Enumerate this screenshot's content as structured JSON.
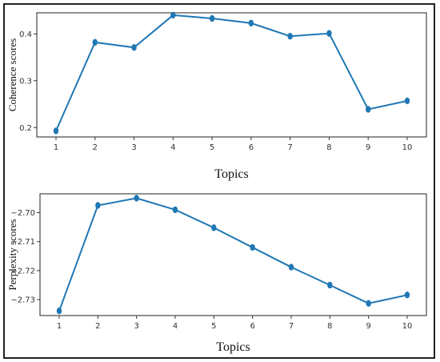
{
  "colors": {
    "line": "#1f77b4",
    "marker": "#1f77b4",
    "frame": "#222222"
  },
  "chart_data": [
    {
      "type": "line",
      "xlabel": "Topics",
      "ylabel": "Coherence scores",
      "x": [
        1,
        2,
        3,
        4,
        5,
        6,
        7,
        8,
        9,
        10
      ],
      "x_tick_labels": [
        "1",
        "2",
        "3",
        "4",
        "5",
        "6",
        "7",
        "8",
        "9",
        "10"
      ],
      "y": [
        0.193,
        0.382,
        0.371,
        0.44,
        0.433,
        0.423,
        0.395,
        0.401,
        0.239,
        0.257
      ],
      "ylim": [
        0.18,
        0.445
      ],
      "y_ticks": [
        0.2,
        0.3,
        0.4
      ],
      "y_tick_labels": [
        "0.2",
        "0.3",
        "0.4"
      ],
      "grid": false,
      "marker": "circle"
    },
    {
      "type": "line",
      "xlabel": "Topics",
      "ylabel": "Perplexity scores",
      "x": [
        1,
        2,
        3,
        4,
        5,
        6,
        7,
        8,
        9,
        10
      ],
      "x_tick_labels": [
        "1",
        "2",
        "3",
        "4",
        "5",
        "6",
        "7",
        "8",
        "9",
        "10"
      ],
      "y": [
        -2.7339,
        -2.6975,
        -2.695,
        -2.699,
        -2.7052,
        -2.712,
        -2.7188,
        -2.725,
        -2.7313,
        -2.7284
      ],
      "ylim": [
        -2.7355,
        -2.6935
      ],
      "y_ticks": [
        -2.7,
        -2.71,
        -2.72,
        -2.73
      ],
      "y_tick_labels": [
        "−2.70",
        "−2.71",
        "−2.72",
        "−2.73"
      ],
      "grid": false,
      "marker": "circle"
    }
  ]
}
